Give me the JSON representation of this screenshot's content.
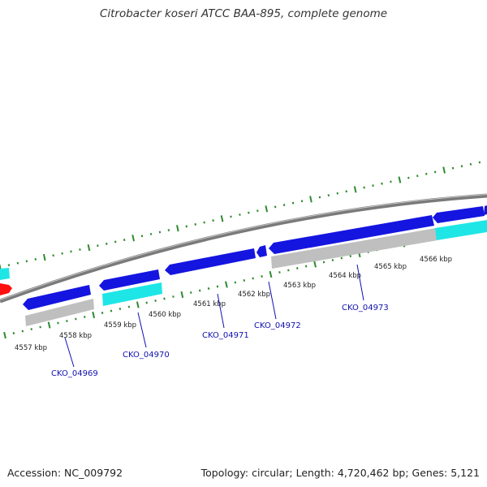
{
  "title": "Citrobacter koseri ATCC BAA-895, complete genome",
  "footer": {
    "accession": "Accession: NC_009792",
    "summary": "Topology: circular; Length: 4,720,462 bp; Genes: 5,121"
  },
  "colors": {
    "cds_blue": "#1515e0",
    "cds_cyan": "#1ee6e6",
    "rna_red": "#ff1010",
    "pseudo_gray": "#bfbfbf",
    "backbone_gray": "#7a7a7a",
    "tick_green": "#2e8b2e",
    "label_blue": "#1010b0"
  },
  "ruler": {
    "unit": "kbp",
    "labels": [
      "4557 kbp",
      "4558 kbp",
      "4559 kbp",
      "4560 kbp",
      "4561 kbp",
      "4562 kbp",
      "4563 kbp",
      "4564 kbp",
      "4565 kbp",
      "4566 kbp"
    ]
  },
  "gene_labels": [
    "CKO_04969",
    "CKO_04970",
    "CKO_04971",
    "CKO_04972",
    "CKO_04973"
  ]
}
